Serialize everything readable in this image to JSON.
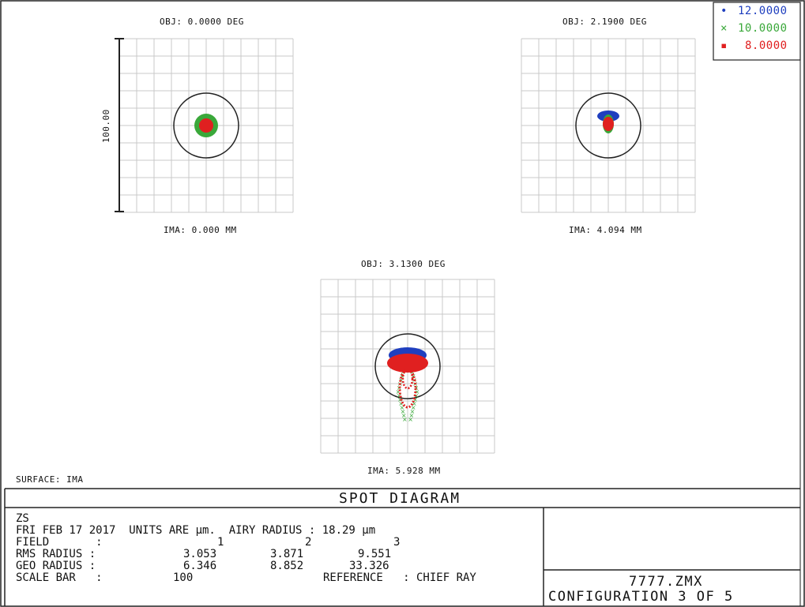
{
  "spot_panels": [
    {
      "obj_label": "OBJ: 0.0000 DEG",
      "ima_label": "IMA: 0.000 MM"
    },
    {
      "obj_label": "OBJ: 2.1900 DEG",
      "ima_label": "IMA: 4.094 MM"
    },
    {
      "obj_label": "OBJ: 3.1300 DEG",
      "ima_label": "IMA: 5.928 MM"
    }
  ],
  "scale_bar_label": "100.00",
  "surface_label": "SURFACE: IMA",
  "legend": [
    {
      "marker": "•",
      "label": "12.0000",
      "color": "#1f3fbf"
    },
    {
      "marker": "×",
      "label": "10.0000",
      "color": "#3aa83a"
    },
    {
      "marker": "▪",
      "label": "8.0000",
      "color": "#e02020"
    }
  ],
  "title_block": {
    "title": "SPOT DIAGRAM",
    "lens": "ZS",
    "line_date": "FRI FEB 17 2017  UNITS ARE µm.  AIRY RADIUS : 18.29 µm",
    "field_label": "FIELD       :",
    "field_values": [
      "1",
      "2",
      "3"
    ],
    "rms_label": "RMS RADIUS :",
    "rms_values": [
      "3.053",
      "3.871",
      "9.551"
    ],
    "geo_label": "GEO RADIUS :",
    "geo_values": [
      "6.346",
      "8.852",
      "33.326"
    ],
    "scale_label": "SCALE BAR   :",
    "scale_value": "100",
    "reference": "REFERENCE   : CHIEF RAY",
    "file": "7777.ZMX",
    "config": "CONFIGURATION 3 OF 5"
  },
  "colors": {
    "blue": "#1f3fbf",
    "green": "#3aa83a",
    "red": "#e02020",
    "grid": "#c8c8c8",
    "ink": "#222222"
  }
}
